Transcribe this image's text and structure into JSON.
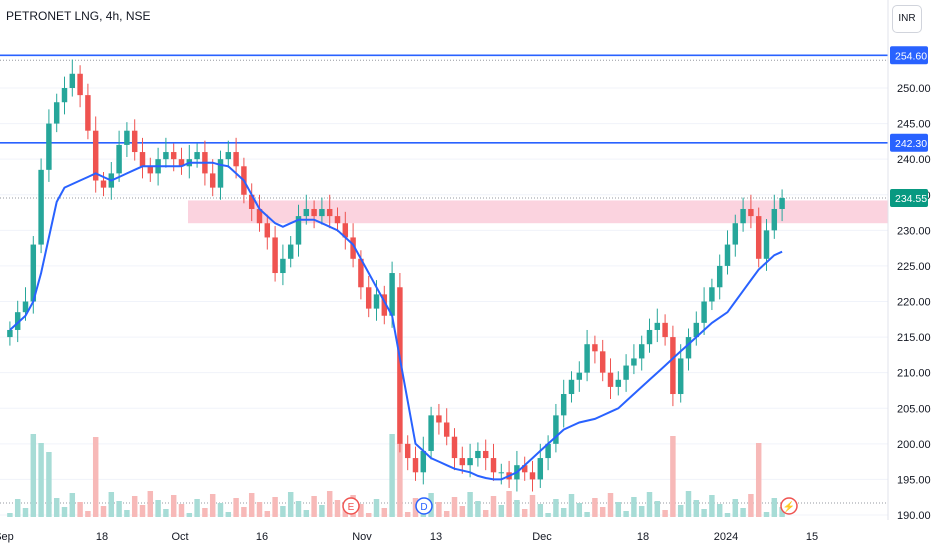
{
  "header": {
    "title": "PETRONET LNG, 4h, NSE",
    "currency": "INR"
  },
  "colors": {
    "up": "#26a69a",
    "down": "#ef5350",
    "ma": "#2962ff",
    "zone": "#fbd3df",
    "level": "#2962ff",
    "last": "#089981"
  },
  "chart_data": {
    "type": "candlestick",
    "title": "PETRONET LNG, 4h, NSE",
    "ylim": [
      190,
      257
    ],
    "y_ticks": [
      190,
      195,
      200,
      205,
      210,
      215,
      220,
      225,
      230,
      235,
      240,
      245,
      250
    ],
    "x_ticks": [
      "Sep",
      "18",
      "Oct",
      "16",
      "Nov",
      "13",
      "Dec",
      "18",
      "2024",
      "15"
    ],
    "levels": [
      {
        "value": 254.6,
        "label": "254.60"
      },
      {
        "value": 242.3,
        "label": "242.30"
      }
    ],
    "last_price": {
      "value": 234.55,
      "label": "234.55"
    },
    "zone": {
      "from": 231,
      "to": 234.2
    },
    "markers": [
      {
        "label": "E",
        "near": "Nov"
      },
      {
        "label": "D",
        "near": "Nov"
      },
      {
        "label": "⚡",
        "near": "2024"
      }
    ],
    "close": [
      216,
      218.5,
      220,
      228,
      238.5,
      245,
      248,
      250,
      252,
      249,
      244,
      237,
      236,
      238,
      242,
      244,
      241,
      239,
      238,
      240,
      241,
      240,
      239,
      240,
      241,
      238,
      236,
      240,
      241,
      239,
      235,
      233,
      231,
      229,
      224,
      226,
      228,
      232,
      233,
      232,
      233,
      232,
      231,
      229,
      226,
      222,
      219,
      221,
      218,
      224,
      200,
      198,
      196,
      199,
      204,
      203,
      201,
      198,
      197,
      198,
      199,
      198,
      196,
      196,
      195,
      197,
      196,
      195,
      198,
      200,
      204,
      207,
      209,
      210,
      214,
      213,
      210,
      208,
      209,
      211,
      212,
      214,
      216,
      217,
      215,
      207,
      212,
      215,
      217,
      220,
      222,
      225,
      228,
      231,
      233,
      232,
      226,
      230,
      233,
      234.55
    ],
    "open": [
      215,
      216,
      218.5,
      220,
      228,
      238.5,
      245,
      248,
      250,
      252,
      249,
      244,
      237,
      236,
      238,
      242,
      244,
      241,
      239,
      238,
      240,
      241,
      240,
      239,
      240,
      241,
      238,
      236,
      240,
      241,
      239,
      235,
      233,
      231,
      229,
      224,
      226,
      228,
      232,
      233,
      232,
      233,
      232,
      231,
      229,
      226,
      222,
      219,
      221,
      218,
      222,
      200,
      198,
      196,
      199,
      204,
      203,
      201,
      198,
      197,
      198,
      199,
      198,
      196,
      196,
      195,
      197,
      196,
      195,
      198,
      200,
      204,
      207,
      209,
      210,
      214,
      213,
      210,
      208,
      209,
      211,
      212,
      214,
      216,
      217,
      215,
      207,
      212,
      215,
      217,
      220,
      222,
      225,
      228,
      231,
      233,
      232,
      226,
      230,
      233
    ],
    "ma": [
      216,
      217,
      218,
      220,
      224,
      229,
      234,
      236,
      237,
      237.5,
      238,
      237.5,
      237,
      237.5,
      238,
      238.5,
      239,
      239,
      239,
      239,
      239,
      239,
      239.5,
      239.5,
      239.5,
      239.2,
      239,
      238,
      237,
      235,
      233,
      232,
      231,
      230.5,
      231,
      231.5,
      231.5,
      231.5,
      231,
      230,
      229,
      228,
      226,
      224,
      222,
      220,
      218,
      212,
      206,
      200,
      199,
      198,
      197.5,
      197,
      196.5,
      196,
      195.5,
      195.2,
      195,
      195,
      195.5,
      196,
      197,
      198,
      199,
      200,
      201,
      202,
      202.5,
      203,
      203.5,
      204,
      204.5,
      205,
      206,
      207,
      208,
      209,
      210,
      211,
      212,
      213,
      214,
      215,
      216,
      217,
      218.5,
      220,
      221.5,
      223,
      224.5,
      225.5,
      226.5,
      227
    ]
  }
}
